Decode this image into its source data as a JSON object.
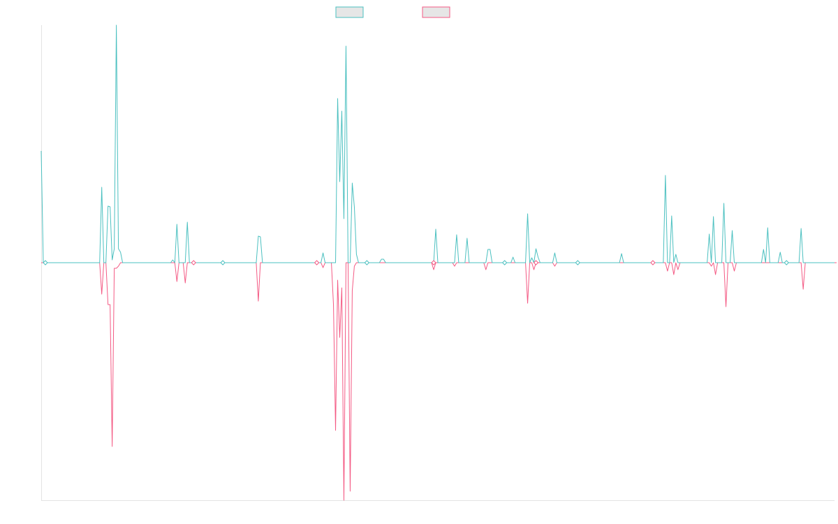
{
  "chart_data": {
    "type": "line",
    "title": "",
    "xlabel": "",
    "ylabel": "",
    "legend": {
      "placement": "top-center",
      "entries": [
        "",
        ""
      ]
    },
    "grid": false,
    "x_range": [
      0,
      340
    ],
    "ylim": [
      -340,
      340
    ],
    "series": [
      {
        "color": "#4bc0c0",
        "values": [
          160,
          0,
          0,
          0,
          0,
          0,
          0,
          0,
          0,
          0,
          0,
          0,
          0,
          0,
          0,
          0,
          0,
          0,
          0,
          0,
          0,
          0,
          0,
          0,
          0,
          0,
          0,
          0,
          0,
          108,
          0,
          0,
          81,
          80,
          4,
          20,
          340,
          20,
          15,
          0,
          0,
          0,
          0,
          0,
          0,
          0,
          0,
          0,
          0,
          0,
          0,
          0,
          0,
          0,
          0,
          0,
          0,
          0,
          0,
          0,
          0,
          0,
          0,
          4,
          0,
          55,
          0,
          0,
          0,
          0,
          58,
          0,
          0,
          0,
          0,
          0,
          0,
          0,
          0,
          0,
          0,
          0,
          0,
          0,
          0,
          0,
          0,
          0,
          0,
          0,
          0,
          0,
          0,
          0,
          0,
          0,
          0,
          0,
          0,
          0,
          0,
          0,
          0,
          0,
          38,
          37,
          0,
          0,
          0,
          0,
          0,
          0,
          0,
          0,
          0,
          0,
          0,
          0,
          0,
          0,
          0,
          0,
          0,
          0,
          0,
          0,
          0,
          0,
          0,
          0,
          0,
          0,
          0,
          0,
          0,
          14,
          0,
          0,
          0,
          0,
          0,
          0,
          235,
          116,
          217,
          63,
          310,
          0,
          0,
          114,
          80,
          12,
          0,
          0,
          0,
          0,
          0,
          0,
          0,
          0,
          0,
          0,
          0,
          5,
          5,
          0,
          0,
          0,
          0,
          0,
          0,
          0,
          0,
          0,
          0,
          0,
          0,
          0,
          0,
          0,
          0,
          0,
          0,
          0,
          0,
          0,
          0,
          0,
          0,
          48,
          0,
          0,
          0,
          0,
          0,
          0,
          0,
          0,
          0,
          40,
          0,
          0,
          0,
          0,
          35,
          0,
          0,
          0,
          0,
          0,
          0,
          0,
          0,
          0,
          19,
          19,
          0,
          0,
          0,
          0,
          0,
          0,
          0,
          0,
          0,
          0,
          8,
          0,
          0,
          0,
          0,
          0,
          0,
          70,
          0,
          7,
          0,
          20,
          8,
          0,
          0,
          0,
          0,
          0,
          0,
          0,
          14,
          0,
          0,
          0,
          0,
          0,
          0,
          0,
          0,
          0,
          0,
          0,
          0,
          0,
          0,
          0,
          0,
          0,
          0,
          0,
          0,
          0,
          0,
          0,
          0,
          0,
          0,
          0,
          0,
          0,
          0,
          0,
          13,
          0,
          0,
          0,
          0,
          0,
          0,
          0,
          0,
          0,
          0,
          0,
          0,
          0,
          0,
          0,
          0,
          0,
          0,
          0,
          0,
          125,
          0,
          0,
          67,
          0,
          12,
          0,
          0,
          0,
          0,
          0,
          0,
          0,
          0,
          0,
          0,
          0,
          0,
          0,
          0,
          0,
          41,
          0,
          66,
          0,
          0,
          0,
          0,
          85,
          0,
          0,
          0,
          46,
          0,
          0,
          0,
          0,
          0,
          0,
          0,
          0,
          0,
          0,
          0,
          0,
          0,
          0,
          19,
          0,
          50,
          0,
          0,
          0,
          0,
          0,
          15,
          0,
          0,
          0,
          0,
          0,
          0,
          0,
          0,
          0,
          49,
          0,
          0,
          0,
          0,
          0,
          0,
          0,
          0,
          0,
          0,
          0,
          0,
          0,
          0,
          0,
          0
        ]
      },
      {
        "color": "#f45a84",
        "values": [
          0,
          0,
          0,
          0,
          0,
          0,
          0,
          0,
          0,
          0,
          0,
          0,
          0,
          0,
          0,
          0,
          0,
          0,
          0,
          0,
          0,
          0,
          0,
          0,
          0,
          0,
          0,
          0,
          0,
          -45,
          0,
          0,
          -60,
          -60,
          -263,
          -8,
          -8,
          -5,
          0,
          0,
          0,
          0,
          0,
          0,
          0,
          0,
          0,
          0,
          0,
          0,
          0,
          0,
          0,
          0,
          0,
          0,
          0,
          0,
          0,
          0,
          0,
          0,
          0,
          0,
          0,
          -27,
          0,
          0,
          0,
          -29,
          0,
          0,
          0,
          0,
          0,
          0,
          0,
          0,
          0,
          0,
          0,
          0,
          0,
          0,
          0,
          0,
          0,
          0,
          0,
          0,
          0,
          0,
          0,
          0,
          0,
          0,
          0,
          0,
          0,
          0,
          0,
          0,
          0,
          0,
          -55,
          0,
          0,
          0,
          0,
          0,
          0,
          0,
          0,
          0,
          0,
          0,
          0,
          0,
          0,
          0,
          0,
          0,
          0,
          0,
          0,
          0,
          0,
          0,
          0,
          0,
          0,
          0,
          0,
          0,
          0,
          -7,
          0,
          0,
          0,
          0,
          -60,
          -240,
          -25,
          -107,
          -36,
          -340,
          0,
          0,
          -327,
          -40,
          -5,
          0,
          0,
          0,
          0,
          0,
          0,
          0,
          0,
          0,
          0,
          0,
          0,
          0,
          0,
          0,
          0,
          0,
          0,
          0,
          0,
          0,
          0,
          0,
          0,
          0,
          0,
          0,
          0,
          0,
          0,
          0,
          0,
          0,
          0,
          0,
          0,
          0,
          -10,
          0,
          0,
          0,
          0,
          0,
          0,
          0,
          0,
          0,
          -5,
          0,
          0,
          0,
          0,
          0,
          0,
          0,
          0,
          0,
          0,
          0,
          0,
          0,
          0,
          -10,
          0,
          0,
          0,
          0,
          0,
          0,
          0,
          0,
          0,
          0,
          0,
          0,
          0,
          0,
          0,
          0,
          0,
          0,
          0,
          -58,
          0,
          0,
          -10,
          0,
          0,
          0,
          0,
          0,
          0,
          0,
          0,
          0,
          -5,
          0,
          0,
          0,
          0,
          0,
          0,
          0,
          0,
          0,
          0,
          0,
          0,
          0,
          0,
          0,
          0,
          0,
          0,
          0,
          0,
          0,
          0,
          0,
          0,
          0,
          0,
          0,
          0,
          0,
          0,
          0,
          0,
          0,
          0,
          0,
          0,
          0,
          0,
          0,
          0,
          0,
          0,
          0,
          0,
          0,
          0,
          0,
          0,
          0,
          0,
          0,
          0,
          0,
          -12,
          0,
          0,
          -17,
          0,
          -10,
          0,
          0,
          0,
          0,
          0,
          0,
          0,
          0,
          0,
          0,
          0,
          0,
          0,
          0,
          0,
          -5,
          0,
          -17,
          0,
          0,
          0,
          0,
          -63,
          0,
          0,
          0,
          -12,
          0,
          0,
          0,
          0,
          0,
          0,
          0,
          0,
          0,
          0,
          0,
          0,
          0,
          0,
          0,
          0,
          0,
          0,
          0,
          0,
          0,
          0,
          0,
          0,
          0,
          0,
          0,
          0,
          0,
          0,
          0,
          0,
          -38,
          0,
          0,
          0,
          0,
          0,
          0,
          0,
          0,
          0,
          0,
          0,
          0,
          0,
          0,
          0,
          0
        ]
      }
    ],
    "markers": [
      2,
      73,
      87,
      132,
      156,
      188,
      222,
      237,
      257,
      293,
      357
    ]
  }
}
